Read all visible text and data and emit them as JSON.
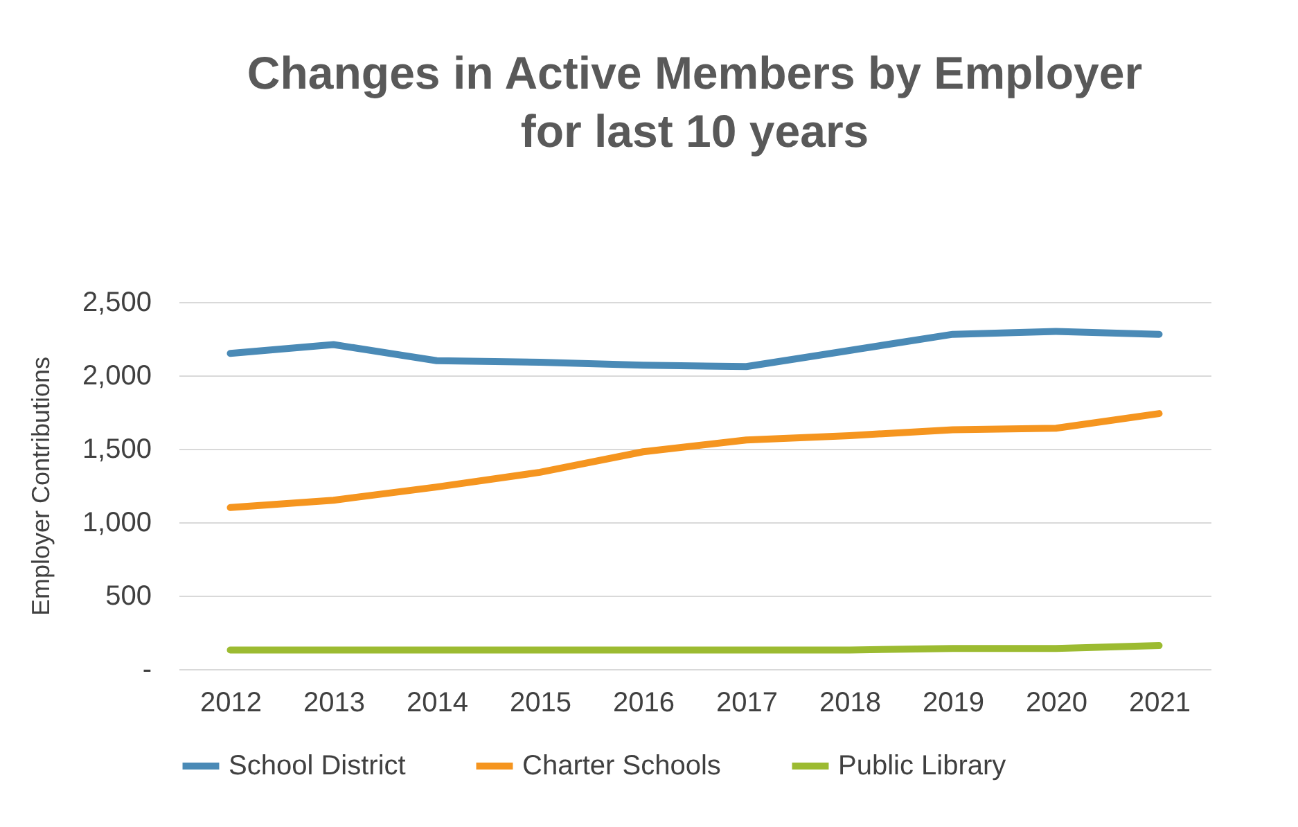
{
  "chart_data": {
    "type": "line",
    "title": "Changes in Active Members by Employer\nfor last 10 years",
    "ylabel": "Employer Contributions",
    "categories": [
      "2012",
      "2013",
      "2014",
      "2015",
      "2016",
      "2017",
      "2018",
      "2019",
      "2020",
      "2021"
    ],
    "series": [
      {
        "name": "School District",
        "color": "#4a8ab6",
        "values": [
          2150,
          2210,
          2100,
          2090,
          2070,
          2060,
          2170,
          2280,
          2300,
          2280
        ]
      },
      {
        "name": "Charter Schools",
        "color": "#f5951f",
        "values": [
          1100,
          1150,
          1240,
          1340,
          1480,
          1560,
          1590,
          1630,
          1640,
          1740
        ]
      },
      {
        "name": "Public Library",
        "color": "#9cbb31",
        "values": [
          130,
          130,
          130,
          130,
          130,
          130,
          130,
          140,
          140,
          160
        ]
      }
    ],
    "ylim": [
      0,
      2500
    ],
    "yticks": [
      {
        "value": 0,
        "label": "-"
      },
      500,
      {
        "value": 1000,
        "label": "1,000"
      },
      {
        "value": 1500,
        "label": "1,500"
      },
      {
        "value": 2000,
        "label": "2,000"
      },
      {
        "value": 2500,
        "label": "2,500"
      }
    ],
    "grid": "y",
    "legend": "bottom",
    "marker": "none",
    "line_style": "solid"
  }
}
